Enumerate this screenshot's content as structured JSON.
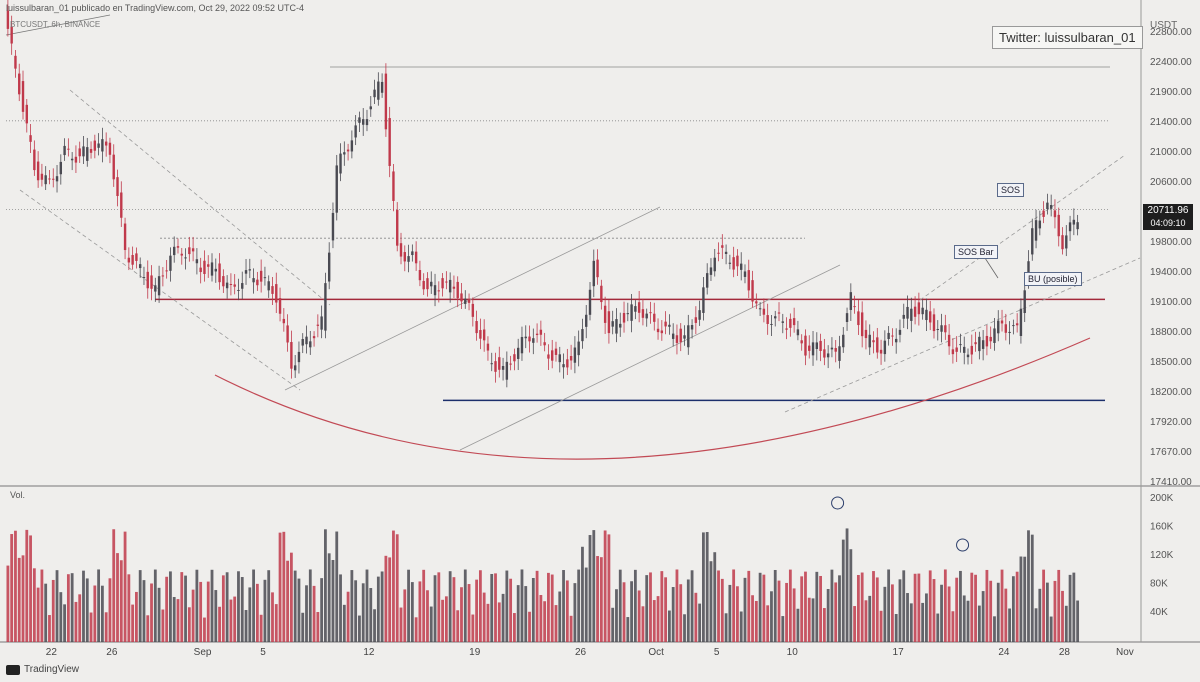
{
  "header": {
    "published": "luissulbaran_01 publicado en TradingView.com, Oct 29, 2022 09:52 UTC-4",
    "symbol": "BTCUSDT, 6h, BINANCE"
  },
  "watermark": "Twitter: luissulbaran_01",
  "footer": {
    "brand": "TradingView"
  },
  "annotations": {
    "sos": "SOS",
    "sos_bar": "SOS Bar",
    "bu": "BU (posible)"
  },
  "price_tag": {
    "price": "20711.96",
    "timer": "04:09:10"
  },
  "colors": {
    "up": "#4a4a52",
    "down": "#c0394b",
    "resistance": "#a3283a",
    "support": "#1c2f6b",
    "arc": "#c24a55"
  },
  "chart_data": {
    "type": "candlestick",
    "unit": "USDT",
    "price_ylim": [
      17410,
      23200
    ],
    "price_ticks": [
      "22800.00",
      "22400.00",
      "21900.00",
      "21400.00",
      "21000.00",
      "20600.00",
      "20200.00",
      "19800.00",
      "19400.00",
      "19100.00",
      "18800.00",
      "18500.00",
      "18200.00",
      "17920.00",
      "17670.00",
      "17410.00"
    ],
    "x_ticks": [
      "22",
      "26",
      "Sep",
      "5",
      "12",
      "19",
      "26",
      "Oct",
      "5",
      "10",
      "17",
      "24",
      "28",
      "Nov"
    ],
    "x_range": [
      "2022-08-19",
      "2022-11-02"
    ],
    "price_path": [
      [
        "2022-08-19",
        23200
      ],
      [
        "2022-08-20",
        22300
      ],
      [
        "2022-08-21",
        21300
      ],
      [
        "2022-08-22",
        21100
      ],
      [
        "2022-08-23",
        21500
      ],
      [
        "2022-08-24",
        21450
      ],
      [
        "2022-08-25",
        21600
      ],
      [
        "2022-08-26",
        21550
      ],
      [
        "2022-08-27",
        20300
      ],
      [
        "2022-08-28",
        20050
      ],
      [
        "2022-08-29",
        19800
      ],
      [
        "2022-08-30",
        20250
      ],
      [
        "2022-08-31",
        20300
      ],
      [
        "2022-09-01",
        20100
      ],
      [
        "2022-09-02",
        20050
      ],
      [
        "2022-09-03",
        19800
      ],
      [
        "2022-09-04",
        20000
      ],
      [
        "2022-09-05",
        19950
      ],
      [
        "2022-09-06",
        19750
      ],
      [
        "2022-09-07",
        18900
      ],
      [
        "2022-09-08",
        19200
      ],
      [
        "2022-09-09",
        19400
      ],
      [
        "2022-09-10",
        21300
      ],
      [
        "2022-09-11",
        21700
      ],
      [
        "2022-09-12",
        22000
      ],
      [
        "2022-09-13",
        22400
      ],
      [
        "2022-09-14",
        20300
      ],
      [
        "2022-09-15",
        20200
      ],
      [
        "2022-09-16",
        19800
      ],
      [
        "2022-09-17",
        19900
      ],
      [
        "2022-09-18",
        19800
      ],
      [
        "2022-09-19",
        19500
      ],
      [
        "2022-09-20",
        19000
      ],
      [
        "2022-09-21",
        18800
      ],
      [
        "2022-09-22",
        19100
      ],
      [
        "2022-09-23",
        19300
      ],
      [
        "2022-09-24",
        19050
      ],
      [
        "2022-09-25",
        18900
      ],
      [
        "2022-09-26",
        19100
      ],
      [
        "2022-09-27",
        20100
      ],
      [
        "2022-09-28",
        19300
      ],
      [
        "2022-09-29",
        19500
      ],
      [
        "2022-09-30",
        19600
      ],
      [
        "2022-10-01",
        19400
      ],
      [
        "2022-10-02",
        19300
      ],
      [
        "2022-10-03",
        19200
      ],
      [
        "2022-10-04",
        19600
      ],
      [
        "2022-10-05",
        20300
      ],
      [
        "2022-10-06",
        20200
      ],
      [
        "2022-10-07",
        20000
      ],
      [
        "2022-10-08",
        19500
      ],
      [
        "2022-10-09",
        19450
      ],
      [
        "2022-10-10",
        19400
      ],
      [
        "2022-10-11",
        19100
      ],
      [
        "2022-10-12",
        19100
      ],
      [
        "2022-10-13",
        19000
      ],
      [
        "2022-10-14",
        19700
      ],
      [
        "2022-10-15",
        19200
      ],
      [
        "2022-10-16",
        19100
      ],
      [
        "2022-10-17",
        19300
      ],
      [
        "2022-10-18",
        19600
      ],
      [
        "2022-10-19",
        19500
      ],
      [
        "2022-10-20",
        19300
      ],
      [
        "2022-10-21",
        19050
      ],
      [
        "2022-10-22",
        19100
      ],
      [
        "2022-10-23",
        19200
      ],
      [
        "2022-10-24",
        19400
      ],
      [
        "2022-10-25",
        19300
      ],
      [
        "2022-10-26",
        20500
      ],
      [
        "2022-10-27",
        20900
      ],
      [
        "2022-10-28",
        20400
      ],
      [
        "2022-10-29",
        20712
      ]
    ],
    "horizontal_levels": [
      {
        "price": 22550,
        "style": "thin"
      },
      {
        "price": 21890,
        "style": "dotted"
      },
      {
        "price": 20800,
        "style": "dotted"
      },
      {
        "price": 20450,
        "style": "dashed"
      },
      {
        "price": 19700,
        "style": "resistance"
      },
      {
        "price": 18460,
        "style": "support"
      }
    ],
    "volume_ylim": [
      0,
      220000
    ],
    "volume_ticks": [
      "200K",
      "160K",
      "120K",
      "80K",
      "40K"
    ]
  }
}
